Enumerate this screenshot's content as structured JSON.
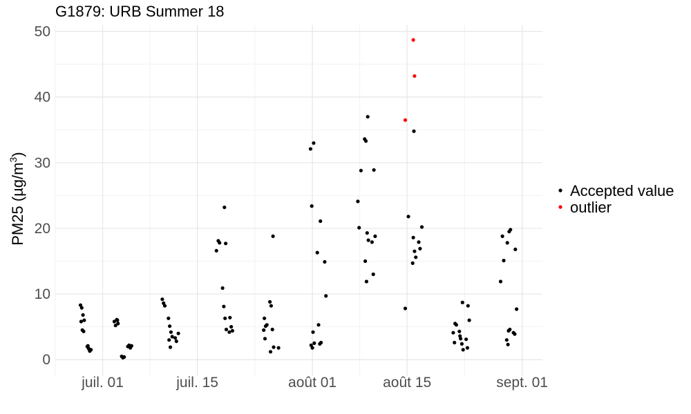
{
  "chart_data": {
    "type": "scatter",
    "title": "G1879: URB Summer 18",
    "ylabel_prefix": "PM25 (",
    "ylabel_unit_main": "µg/m",
    "ylabel_unit_exp": "3",
    "ylabel_suffix": ")",
    "xlabel": "",
    "xlim": [
      "2018-06-24",
      "2018-09-04"
    ],
    "ylim": [
      -2.5,
      51
    ],
    "x_ticks": [
      {
        "date": "2018-07-01",
        "label": "juil. 01"
      },
      {
        "date": "2018-07-15",
        "label": "juil. 15"
      },
      {
        "date": "2018-08-01",
        "label": "août 01"
      },
      {
        "date": "2018-08-15",
        "label": "août 15"
      },
      {
        "date": "2018-09-01",
        "label": "sept. 01"
      }
    ],
    "y_ticks": [
      0,
      10,
      20,
      30,
      40,
      50
    ],
    "y_tick_labels": [
      "0",
      "10",
      "20",
      "30",
      "40",
      "50"
    ],
    "grid": true,
    "legend_position": "right",
    "series": [
      {
        "name": "Accepted value",
        "color": "#000000",
        "points": [
          [
            "2018-06-28",
            8.3
          ],
          [
            "2018-06-28",
            7.9
          ],
          [
            "2018-06-28",
            6.8
          ],
          [
            "2018-06-28",
            6.0
          ],
          [
            "2018-06-28",
            5.8
          ],
          [
            "2018-06-28",
            4.5
          ],
          [
            "2018-06-28",
            4.3
          ],
          [
            "2018-06-29",
            2.0
          ],
          [
            "2018-06-29",
            1.7
          ],
          [
            "2018-06-29",
            1.3
          ],
          [
            "2018-06-29",
            1.5
          ],
          [
            "2018-06-29",
            2.1
          ],
          [
            "2018-06-29",
            1.6
          ],
          [
            "2018-07-03",
            6.0
          ],
          [
            "2018-07-03",
            5.8
          ],
          [
            "2018-07-03",
            5.2
          ],
          [
            "2018-07-03",
            6.1
          ],
          [
            "2018-07-03",
            5.5
          ],
          [
            "2018-07-04",
            0.5
          ],
          [
            "2018-07-04",
            0.3
          ],
          [
            "2018-07-04",
            0.4
          ],
          [
            "2018-07-05",
            2.0
          ],
          [
            "2018-07-05",
            2.2
          ],
          [
            "2018-07-05",
            1.8
          ],
          [
            "2018-07-05",
            2.1
          ],
          [
            "2018-07-10",
            9.2
          ],
          [
            "2018-07-10",
            8.6
          ],
          [
            "2018-07-10",
            8.2
          ],
          [
            "2018-07-11",
            6.3
          ],
          [
            "2018-07-11",
            5.1
          ],
          [
            "2018-07-11",
            4.2
          ],
          [
            "2018-07-11",
            3.5
          ],
          [
            "2018-07-11",
            3.0
          ],
          [
            "2018-07-11",
            1.9
          ],
          [
            "2018-07-12",
            4.0
          ],
          [
            "2018-07-12",
            3.3
          ],
          [
            "2018-07-12",
            2.8
          ],
          [
            "2018-07-18",
            18.1
          ],
          [
            "2018-07-18",
            17.8
          ],
          [
            "2018-07-18",
            16.6
          ],
          [
            "2018-07-19",
            23.2
          ],
          [
            "2018-07-19",
            17.7
          ],
          [
            "2018-07-19",
            10.9
          ],
          [
            "2018-07-19",
            8.1
          ],
          [
            "2018-07-19",
            6.3
          ],
          [
            "2018-07-19",
            4.6
          ],
          [
            "2018-07-20",
            6.4
          ],
          [
            "2018-07-20",
            5.0
          ],
          [
            "2018-07-20",
            4.4
          ],
          [
            "2018-07-20",
            4.2
          ],
          [
            "2018-07-25",
            6.3
          ],
          [
            "2018-07-25",
            5.1
          ],
          [
            "2018-07-25",
            5.3
          ],
          [
            "2018-07-25",
            4.5
          ],
          [
            "2018-07-25",
            3.2
          ],
          [
            "2018-07-26",
            18.8
          ],
          [
            "2018-07-26",
            8.8
          ],
          [
            "2018-07-26",
            8.2
          ],
          [
            "2018-07-26",
            4.6
          ],
          [
            "2018-07-26",
            1.9
          ],
          [
            "2018-07-26",
            1.2
          ],
          [
            "2018-07-27",
            1.8
          ],
          [
            "2018-08-01",
            33.0
          ],
          [
            "2018-08-01",
            32.1
          ],
          [
            "2018-08-01",
            23.4
          ],
          [
            "2018-08-01",
            4.2
          ],
          [
            "2018-08-01",
            2.5
          ],
          [
            "2018-08-01",
            2.2
          ],
          [
            "2018-08-01",
            1.8
          ],
          [
            "2018-08-02",
            21.1
          ],
          [
            "2018-08-02",
            16.3
          ],
          [
            "2018-08-02",
            5.3
          ],
          [
            "2018-08-02",
            2.4
          ],
          [
            "2018-08-02",
            2.6
          ],
          [
            "2018-08-03",
            14.9
          ],
          [
            "2018-08-03",
            9.7
          ],
          [
            "2018-08-08",
            28.8
          ],
          [
            "2018-08-08",
            24.1
          ],
          [
            "2018-08-08",
            20.1
          ],
          [
            "2018-08-09",
            19.3
          ],
          [
            "2018-08-09",
            18.2
          ],
          [
            "2018-08-09",
            15.0
          ],
          [
            "2018-08-09",
            11.9
          ],
          [
            "2018-08-09",
            37.0
          ],
          [
            "2018-08-09",
            33.6
          ],
          [
            "2018-08-09",
            33.3
          ],
          [
            "2018-08-10",
            28.9
          ],
          [
            "2018-08-10",
            18.8
          ],
          [
            "2018-08-10",
            17.9
          ],
          [
            "2018-08-10",
            13.0
          ],
          [
            "2018-08-15",
            21.8
          ],
          [
            "2018-08-15",
            7.8
          ],
          [
            "2018-08-16",
            18.6
          ],
          [
            "2018-08-16",
            16.5
          ],
          [
            "2018-08-16",
            15.6
          ],
          [
            "2018-08-16",
            14.7
          ],
          [
            "2018-08-16",
            34.8
          ],
          [
            "2018-08-17",
            20.2
          ],
          [
            "2018-08-17",
            17.9
          ],
          [
            "2018-08-17",
            16.9
          ],
          [
            "2018-08-22",
            5.5
          ],
          [
            "2018-08-22",
            5.3
          ],
          [
            "2018-08-22",
            4.1
          ],
          [
            "2018-08-22",
            2.6
          ],
          [
            "2018-08-23",
            8.7
          ],
          [
            "2018-08-23",
            4.3
          ],
          [
            "2018-08-23",
            3.2
          ],
          [
            "2018-08-23",
            2.4
          ],
          [
            "2018-08-23",
            1.5
          ],
          [
            "2018-08-23",
            3.6
          ],
          [
            "2018-08-24",
            8.2
          ],
          [
            "2018-08-24",
            6.0
          ],
          [
            "2018-08-24",
            3.1
          ],
          [
            "2018-08-24",
            1.8
          ],
          [
            "2018-08-29",
            18.8
          ],
          [
            "2018-08-29",
            15.1
          ],
          [
            "2018-08-29",
            11.9
          ],
          [
            "2018-08-30",
            4.4
          ],
          [
            "2018-08-30",
            4.6
          ],
          [
            "2018-08-30",
            3.0
          ],
          [
            "2018-08-30",
            2.3
          ],
          [
            "2018-08-30",
            19.5
          ],
          [
            "2018-08-30",
            19.8
          ],
          [
            "2018-08-30",
            17.8
          ],
          [
            "2018-08-31",
            16.8
          ],
          [
            "2018-08-31",
            7.7
          ],
          [
            "2018-08-31",
            4.1
          ],
          [
            "2018-08-31",
            3.9
          ]
        ]
      },
      {
        "name": "outlier",
        "color": "#ff0000",
        "points": [
          [
            "2018-08-15",
            36.5
          ],
          [
            "2018-08-16",
            48.7
          ],
          [
            "2018-08-16",
            43.2
          ]
        ]
      }
    ]
  }
}
